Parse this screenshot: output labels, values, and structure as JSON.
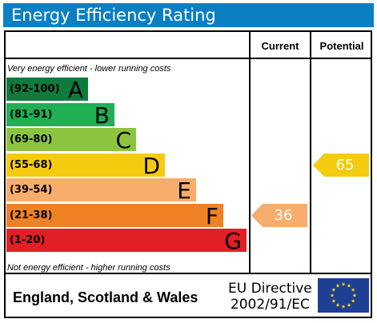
{
  "title": "Energy Efficiency Rating",
  "columns": {
    "current": "Current",
    "potential": "Potential"
  },
  "top_note": "Very energy efficient - lower running costs",
  "bottom_note": "Not energy efficient - higher running costs",
  "footer": {
    "region": "England, Scotland & Wales",
    "directive_line1": "EU Directive",
    "directive_line2": "2002/91/EC"
  },
  "flag_icon": "eu-flag-icon",
  "chart_data": {
    "type": "bar",
    "title": "Energy Efficiency Rating",
    "categories": [
      "A",
      "B",
      "C",
      "D",
      "E",
      "F",
      "G"
    ],
    "bands": [
      {
        "letter": "A",
        "range": "(92-100)",
        "min": 92,
        "max": 100,
        "color": "#107a3d",
        "letter_color": "#000000"
      },
      {
        "letter": "B",
        "range": "(81-91)",
        "min": 81,
        "max": 91,
        "color": "#1fb054",
        "letter_color": "#000000"
      },
      {
        "letter": "C",
        "range": "(69-80)",
        "min": 69,
        "max": 80,
        "color": "#8cc43f",
        "letter_color": "#000000"
      },
      {
        "letter": "D",
        "range": "(55-68)",
        "min": 55,
        "max": 68,
        "color": "#f5cb10",
        "letter_color": "#000000"
      },
      {
        "letter": "E",
        "range": "(39-54)",
        "min": 39,
        "max": 54,
        "color": "#f7ad6b",
        "letter_color": "#000000"
      },
      {
        "letter": "F",
        "range": "(21-38)",
        "min": 21,
        "max": 38,
        "color": "#ef8125",
        "letter_color": "#000000"
      },
      {
        "letter": "G",
        "range": "(1-20)",
        "min": 1,
        "max": 20,
        "color": "#e21e26",
        "letter_color": "#000000"
      }
    ],
    "current": {
      "value": 36,
      "band": "F",
      "color": "#f7ad6b"
    },
    "potential": {
      "value": 65,
      "band": "D",
      "color": "#f5cb10"
    }
  }
}
